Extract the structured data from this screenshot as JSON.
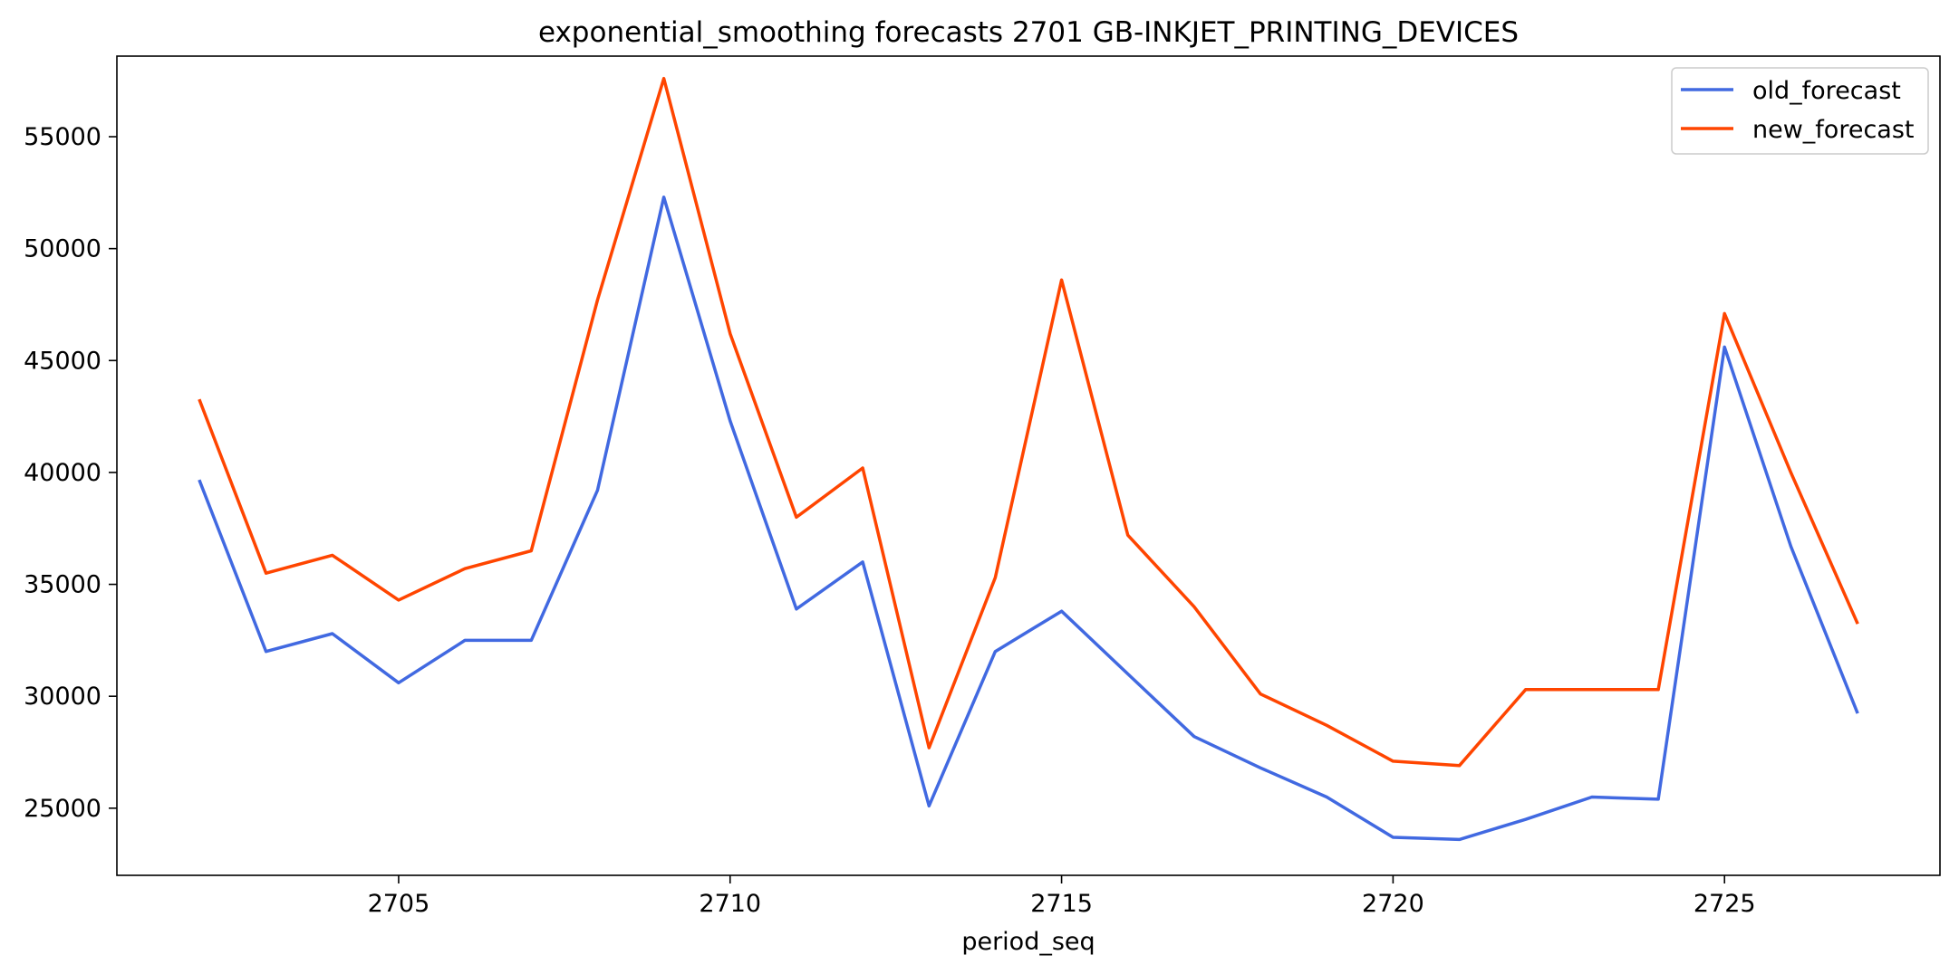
{
  "chart_data": {
    "type": "line",
    "title": "exponential_smoothing forecasts 2701 GB-INKJET_PRINTING_DEVICES",
    "xlabel": "period_seq",
    "ylabel": "",
    "x": [
      2702,
      2703,
      2704,
      2705,
      2706,
      2707,
      2708,
      2709,
      2710,
      2711,
      2712,
      2713,
      2714,
      2715,
      2716,
      2717,
      2718,
      2719,
      2720,
      2721,
      2722,
      2723,
      2724,
      2725,
      2726,
      2727
    ],
    "xlim": [
      2700.75,
      2728.25
    ],
    "ylim": [
      22000,
      58600
    ],
    "xticks": [
      2705,
      2710,
      2715,
      2720,
      2725
    ],
    "yticks": [
      25000,
      30000,
      35000,
      40000,
      45000,
      50000,
      55000
    ],
    "grid": false,
    "legend_position": "top-right",
    "series": [
      {
        "name": "old_forecast",
        "color": "#4169e1",
        "values": [
          39600,
          32000,
          32800,
          30600,
          32500,
          32500,
          39200,
          52300,
          42300,
          33900,
          36000,
          25100,
          32000,
          33800,
          31000,
          28200,
          26800,
          25500,
          23700,
          23600,
          24500,
          25500,
          25400,
          45600,
          36700,
          29300
        ]
      },
      {
        "name": "new_forecast",
        "color": "#ff4500",
        "values": [
          43200,
          35500,
          36300,
          34300,
          35700,
          36500,
          47700,
          57600,
          46200,
          38000,
          40200,
          27700,
          35300,
          48600,
          37200,
          34000,
          30100,
          28700,
          27100,
          26900,
          30300,
          30300,
          30300,
          47100,
          40000,
          33300
        ]
      }
    ]
  }
}
